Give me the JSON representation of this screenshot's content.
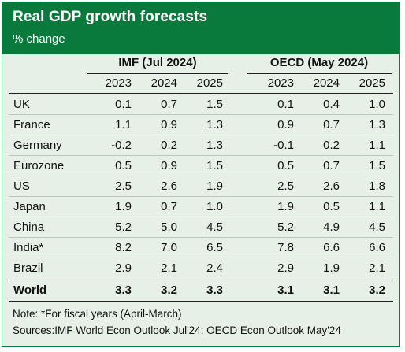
{
  "header": {
    "title": "Real GDP growth forecasts",
    "subtitle": "% change"
  },
  "table": {
    "groups": [
      {
        "label": "IMF (Jul 2024)",
        "years": [
          "2023",
          "2024",
          "2025"
        ]
      },
      {
        "label": "OECD (May 2024)",
        "years": [
          "2023",
          "2024",
          "2025"
        ]
      }
    ],
    "rows": [
      {
        "country": "UK",
        "imf": [
          "0.1",
          "0.7",
          "1.5"
        ],
        "oecd": [
          "0.1",
          "0.4",
          "1.0"
        ]
      },
      {
        "country": "France",
        "imf": [
          "1.1",
          "0.9",
          "1.3"
        ],
        "oecd": [
          "0.9",
          "0.7",
          "1.3"
        ]
      },
      {
        "country": "Germany",
        "imf": [
          "-0.2",
          "0.2",
          "1.3"
        ],
        "oecd": [
          "-0.1",
          "0.2",
          "1.1"
        ]
      },
      {
        "country": "Eurozone",
        "imf": [
          "0.5",
          "0.9",
          "1.5"
        ],
        "oecd": [
          "0.5",
          "0.7",
          "1.5"
        ]
      },
      {
        "country": "US",
        "imf": [
          "2.5",
          "2.6",
          "1.9"
        ],
        "oecd": [
          "2.5",
          "2.6",
          "1.8"
        ]
      },
      {
        "country": "Japan",
        "imf": [
          "1.9",
          "0.7",
          "1.0"
        ],
        "oecd": [
          "1.9",
          "0.5",
          "1.1"
        ]
      },
      {
        "country": "China",
        "imf": [
          "5.2",
          "5.0",
          "4.5"
        ],
        "oecd": [
          "5.2",
          "4.9",
          "4.5"
        ]
      },
      {
        "country": "India*",
        "imf": [
          "8.2",
          "7.0",
          "6.5"
        ],
        "oecd": [
          "7.8",
          "6.6",
          "6.6"
        ]
      },
      {
        "country": "Brazil",
        "imf": [
          "2.9",
          "2.1",
          "2.4"
        ],
        "oecd": [
          "2.9",
          "1.9",
          "2.1"
        ]
      }
    ],
    "total": {
      "country": "World",
      "imf": [
        "3.3",
        "3.2",
        "3.3"
      ],
      "oecd": [
        "3.1",
        "3.1",
        "3.2"
      ]
    }
  },
  "notes": {
    "note": "Note: *For fiscal years (April-March)",
    "sources": "Sources:IMF World Econ Outlook Jul'24; OECD Econ Outlook May'24"
  },
  "colors": {
    "header_bg": "#0a7a3c",
    "body_bg": "#e6f0e6"
  }
}
